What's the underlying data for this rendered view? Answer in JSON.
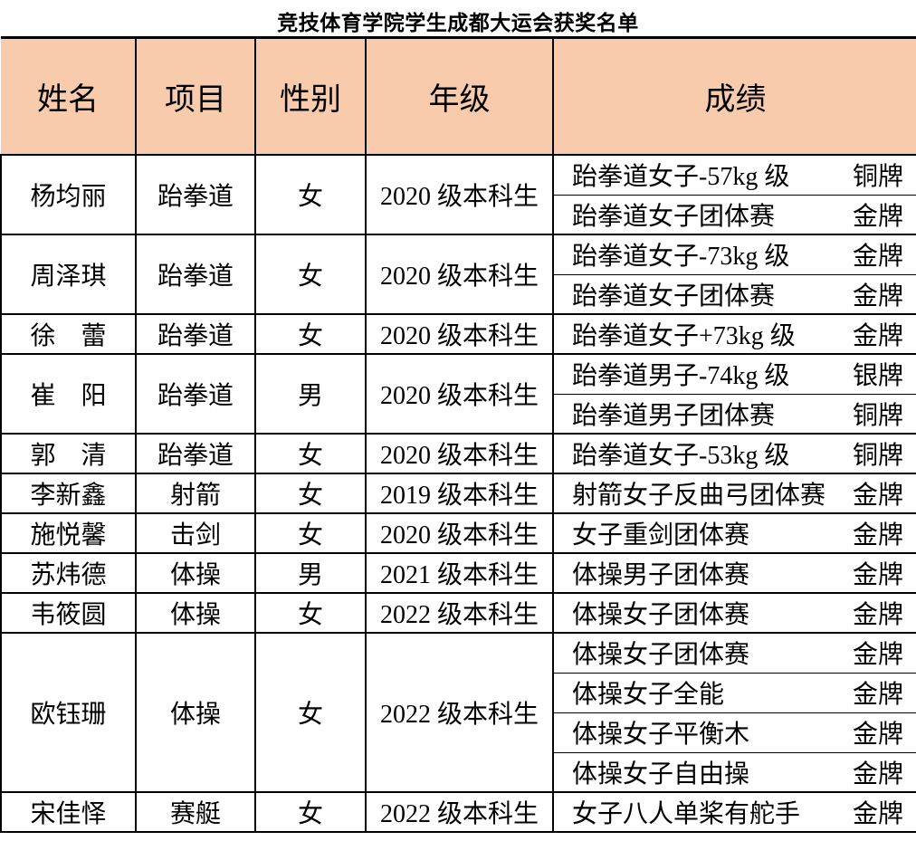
{
  "page_title": "竞技体育学院学生成都大运会获奖名单",
  "colors": {
    "header_bg": "#F8CBAD",
    "border": "#000000",
    "text": "#000000",
    "page_bg": "#FFFFFF"
  },
  "table": {
    "columns": [
      "姓名",
      "项目",
      "性别",
      "年级",
      "成绩"
    ],
    "rows": [
      {
        "name": "杨均丽",
        "sport": "跆拳道",
        "gender": "女",
        "grade": "2020 级本科生",
        "results": [
          {
            "event": "跆拳道女子-57kg 级",
            "medal": "铜牌"
          },
          {
            "event": "跆拳道女子团体赛",
            "medal": "金牌"
          }
        ]
      },
      {
        "name": "周泽琪",
        "sport": "跆拳道",
        "gender": "女",
        "grade": "2020 级本科生",
        "results": [
          {
            "event": "跆拳道女子-73kg 级",
            "medal": "金牌"
          },
          {
            "event": "跆拳道女子团体赛",
            "medal": "金牌"
          }
        ]
      },
      {
        "name": "徐　蕾",
        "sport": "跆拳道",
        "gender": "女",
        "grade": "2020 级本科生",
        "results": [
          {
            "event": "跆拳道女子+73kg 级",
            "medal": "金牌"
          }
        ]
      },
      {
        "name": "崔　阳",
        "sport": "跆拳道",
        "gender": "男",
        "grade": "2020 级本科生",
        "results": [
          {
            "event": "跆拳道男子-74kg 级",
            "medal": "银牌"
          },
          {
            "event": "跆拳道男子团体赛",
            "medal": "铜牌"
          }
        ]
      },
      {
        "name": "郭　清",
        "sport": "跆拳道",
        "gender": "女",
        "grade": "2020 级本科生",
        "results": [
          {
            "event": "跆拳道女子-53kg 级",
            "medal": "铜牌"
          }
        ]
      },
      {
        "name": "李新鑫",
        "sport": "射箭",
        "gender": "女",
        "grade": "2019 级本科生",
        "results": [
          {
            "event": "射箭女子反曲弓团体赛",
            "medal": "金牌"
          }
        ]
      },
      {
        "name": "施悦馨",
        "sport": "击剑",
        "gender": "女",
        "grade": "2020 级本科生",
        "results": [
          {
            "event": "女子重剑团体赛",
            "medal": "金牌"
          }
        ]
      },
      {
        "name": "苏炜德",
        "sport": "体操",
        "gender": "男",
        "grade": "2021 级本科生",
        "results": [
          {
            "event": "体操男子团体赛",
            "medal": "金牌"
          }
        ]
      },
      {
        "name": "韦筱圆",
        "sport": "体操",
        "gender": "女",
        "grade": "2022 级本科生",
        "results": [
          {
            "event": "体操女子团体赛",
            "medal": "金牌"
          }
        ]
      },
      {
        "name": "欧钰珊",
        "sport": "体操",
        "gender": "女",
        "grade": "2022 级本科生",
        "results": [
          {
            "event": "体操女子团体赛",
            "medal": "金牌"
          },
          {
            "event": "体操女子全能",
            "medal": "金牌"
          },
          {
            "event": "体操女子平衡木",
            "medal": "金牌"
          },
          {
            "event": "体操女子自由操",
            "medal": "金牌"
          }
        ]
      },
      {
        "name": "宋佳怿",
        "sport": "赛艇",
        "gender": "女",
        "grade": "2022 级本科生",
        "results": [
          {
            "event": "女子八人单桨有舵手",
            "medal": "金牌"
          }
        ]
      }
    ]
  }
}
